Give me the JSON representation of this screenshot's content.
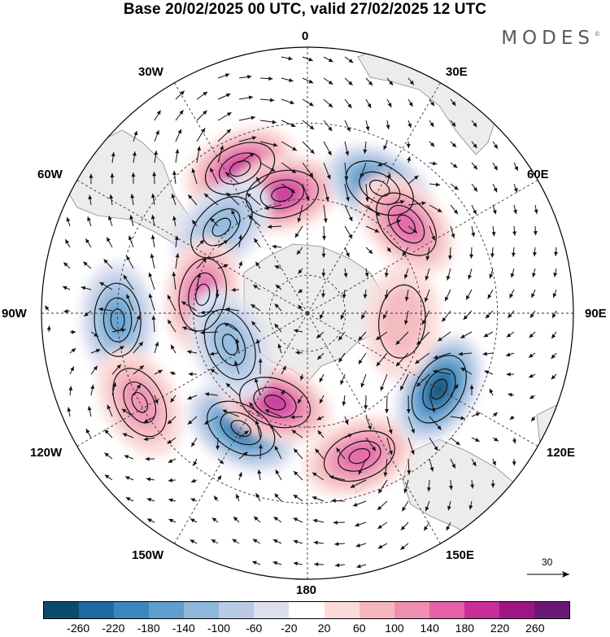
{
  "title": "Base 20/02/2025 00 UTC, valid 27/02/2025 12 UTC",
  "brand": "MODES",
  "brand_mark": "©",
  "longitude_labels": {
    "lon_0": "0",
    "lon_30e": "30E",
    "lon_60e": "60E",
    "lon_90e": "90E",
    "lon_120e": "120E",
    "lon_150e": "150E",
    "lon_180": "180",
    "lon_150w": "150W",
    "lon_120w": "120W",
    "lon_90w": "90W",
    "lon_60w": "60W",
    "lon_30w": "30W"
  },
  "reference_vector": "30",
  "colorbar": {
    "colors": [
      "#0b4a6e",
      "#1d6aa0",
      "#3a87bd",
      "#5f9fcd",
      "#8eb7dc",
      "#b8cae6",
      "#dcdff0",
      "#ffffff",
      "#fadbd9",
      "#f5b7bd",
      "#ee8fb1",
      "#e461a6",
      "#c92f96",
      "#9d1784",
      "#6a1a74"
    ],
    "ticks": [
      "-260",
      "-220",
      "-180",
      "-140",
      "-100",
      "-60",
      "-20",
      "20",
      "60",
      "100",
      "140",
      "180",
      "220",
      "260"
    ]
  },
  "anomaly_centers": [
    {
      "lon": -25,
      "lat": -48,
      "value": 200
    },
    {
      "lon": -12,
      "lat": -58,
      "value": 190
    },
    {
      "lon": 30,
      "lat": -52,
      "value": -230
    },
    {
      "lon": 48,
      "lat": -55,
      "value": 150
    },
    {
      "lon": -45,
      "lat": -58,
      "value": -130
    },
    {
      "lon": -80,
      "lat": -62,
      "value": 170
    },
    {
      "lon": -92,
      "lat": -40,
      "value": -170
    },
    {
      "lon": -118,
      "lat": -40,
      "value": 120
    },
    {
      "lon": -150,
      "lat": -55,
      "value": -250
    },
    {
      "lon": -160,
      "lat": -65,
      "value": 200
    },
    {
      "lon": 160,
      "lat": -50,
      "value": 170
    },
    {
      "lon": 120,
      "lat": -50,
      "value": -260
    },
    {
      "lon": -112,
      "lat": -68,
      "value": -110
    },
    {
      "lon": 95,
      "lat": -65,
      "value": 70
    }
  ]
}
